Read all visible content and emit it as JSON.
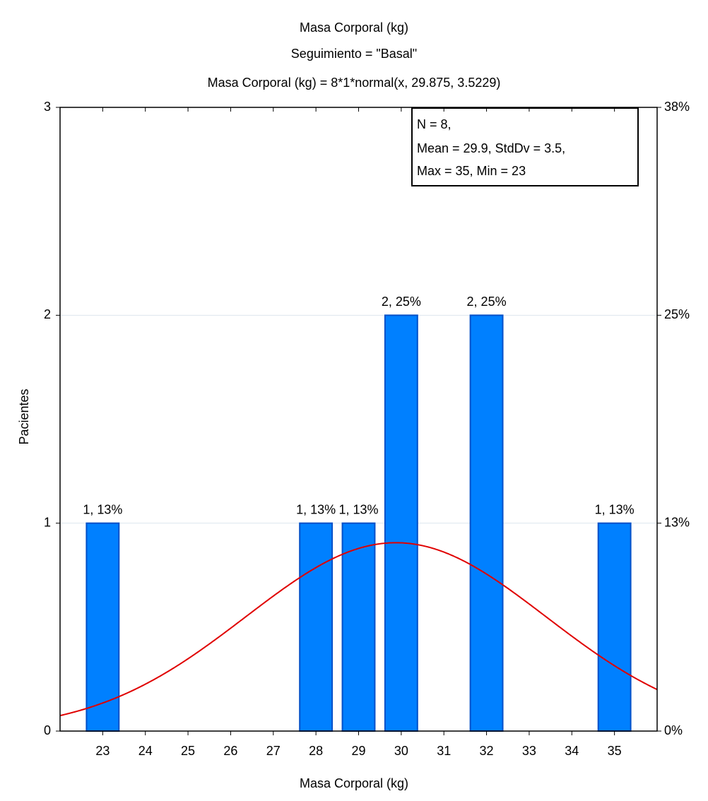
{
  "chart_data": {
    "type": "bar",
    "title": "Masa Corporal (kg)",
    "subtitle": "Seguimiento = \"Basal\"",
    "fit_label": "Masa Corporal (kg) = 8*1*normal(x, 29.875, 3.5229)",
    "x_label": "Masa Corporal (kg)",
    "y_label": "Pacientes",
    "x": [
      23,
      28,
      29,
      30,
      32,
      35
    ],
    "values": [
      1,
      1,
      1,
      2,
      2,
      1
    ],
    "value_labels": [
      "1, 13%",
      "1, 13%",
      "1, 13%",
      "2, 25%",
      "2, 25%",
      "1, 13%"
    ],
    "color": "#0080ff",
    "edge_color": "#0050c8",
    "xlim": [
      22,
      36
    ],
    "xticks": [
      23,
      24,
      25,
      26,
      27,
      28,
      29,
      30,
      31,
      32,
      33,
      34,
      35
    ],
    "ylim": [
      0,
      3
    ],
    "yticks": [
      0,
      1,
      2,
      3
    ],
    "y2lim": [
      0,
      37.5
    ],
    "y2ticks": [
      {
        "value": 0,
        "label": "0%"
      },
      {
        "value": 12.5,
        "label": "13%"
      },
      {
        "value": 25,
        "label": "25%"
      },
      {
        "value": 37.5,
        "label": "38%"
      }
    ],
    "grid": true,
    "fit": {
      "n": 8,
      "width": 1,
      "mean": 29.875,
      "sd": 3.5229,
      "color": "#e00000"
    },
    "stats_box": [
      "N = 8,",
      "Mean = 29.9, StdDv = 3.5,",
      "Max = 35, Min = 23"
    ]
  }
}
